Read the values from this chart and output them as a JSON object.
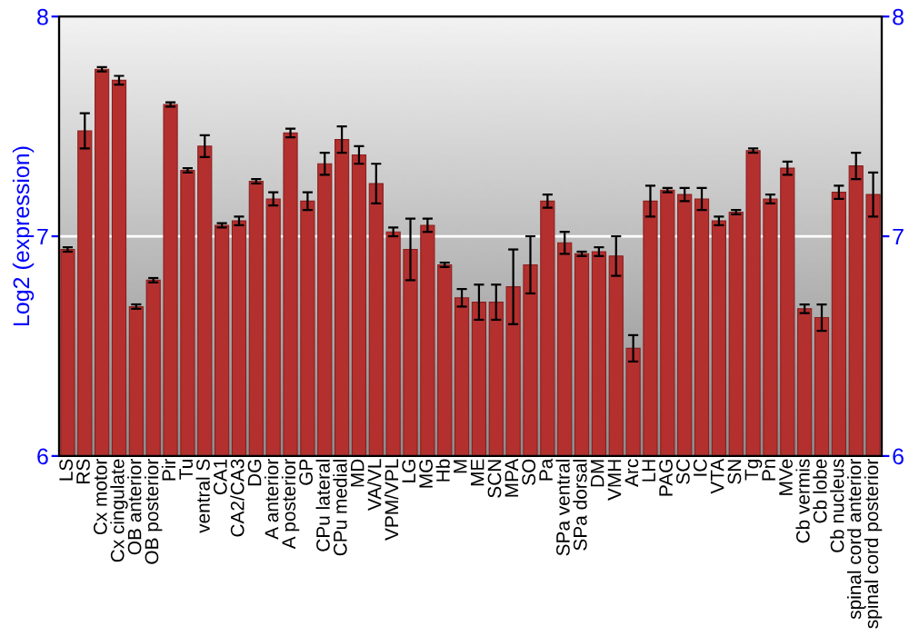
{
  "chart_data": {
    "type": "bar",
    "ylabel": "Log2 (expression)",
    "categories": [
      "LS",
      "RS",
      "Cx motor",
      "Cx cingulate",
      "OB anterior",
      "OB posterior",
      "Pir",
      "Tu",
      "ventral S",
      "CA1",
      "CA2/CA3",
      "DG",
      "A anterior",
      "A posterior",
      "GP",
      "CPu lateral",
      "CPu medial",
      "MD",
      "VA/VL",
      "VPM/VPL",
      "LG",
      "MG",
      "Hb",
      "M",
      "ME",
      "SCN",
      "MPA",
      "SO",
      "Pa",
      "SPa ventral",
      "SPa dorsal",
      "DM",
      "VMH",
      "Arc",
      "LH",
      "PAG",
      "SC",
      "IC",
      "VTA",
      "SN",
      "Tg",
      "Pn",
      "MVe",
      "Cb vermis",
      "Cb lobe",
      "Cb nucleus",
      "spinal cord anterior",
      "spinal cord posterior"
    ],
    "values": [
      6.94,
      7.48,
      7.76,
      7.71,
      6.68,
      6.8,
      7.6,
      7.3,
      7.41,
      7.05,
      7.07,
      7.25,
      7.17,
      7.47,
      7.16,
      7.33,
      7.44,
      7.37,
      7.24,
      7.02,
      6.94,
      7.05,
      6.87,
      6.72,
      6.7,
      6.7,
      6.77,
      6.87,
      7.16,
      6.97,
      6.92,
      6.93,
      6.91,
      6.49,
      7.16,
      7.21,
      7.19,
      7.17,
      7.07,
      7.11,
      7.39,
      7.17,
      7.31,
      6.67,
      6.63,
      7.2,
      7.32,
      7.19
    ],
    "errors": [
      0.01,
      0.08,
      0.01,
      0.02,
      0.01,
      0.01,
      0.01,
      0.01,
      0.05,
      0.01,
      0.02,
      0.01,
      0.03,
      0.02,
      0.04,
      0.05,
      0.06,
      0.04,
      0.09,
      0.02,
      0.14,
      0.03,
      0.01,
      0.04,
      0.08,
      0.08,
      0.17,
      0.13,
      0.03,
      0.05,
      0.01,
      0.02,
      0.09,
      0.06,
      0.07,
      0.01,
      0.03,
      0.05,
      0.02,
      0.01,
      0.01,
      0.02,
      0.03,
      0.02,
      0.06,
      0.03,
      0.06,
      0.1
    ],
    "color": "#b3302f",
    "ylim": [
      6,
      8
    ],
    "yticks": [
      6,
      7,
      8
    ],
    "y2lim": [
      6,
      8
    ],
    "y2ticks": [
      6,
      7,
      8
    ],
    "ref_lines": [
      {
        "axis": "y",
        "value": 7,
        "color": "#ffffff"
      }
    ]
  }
}
